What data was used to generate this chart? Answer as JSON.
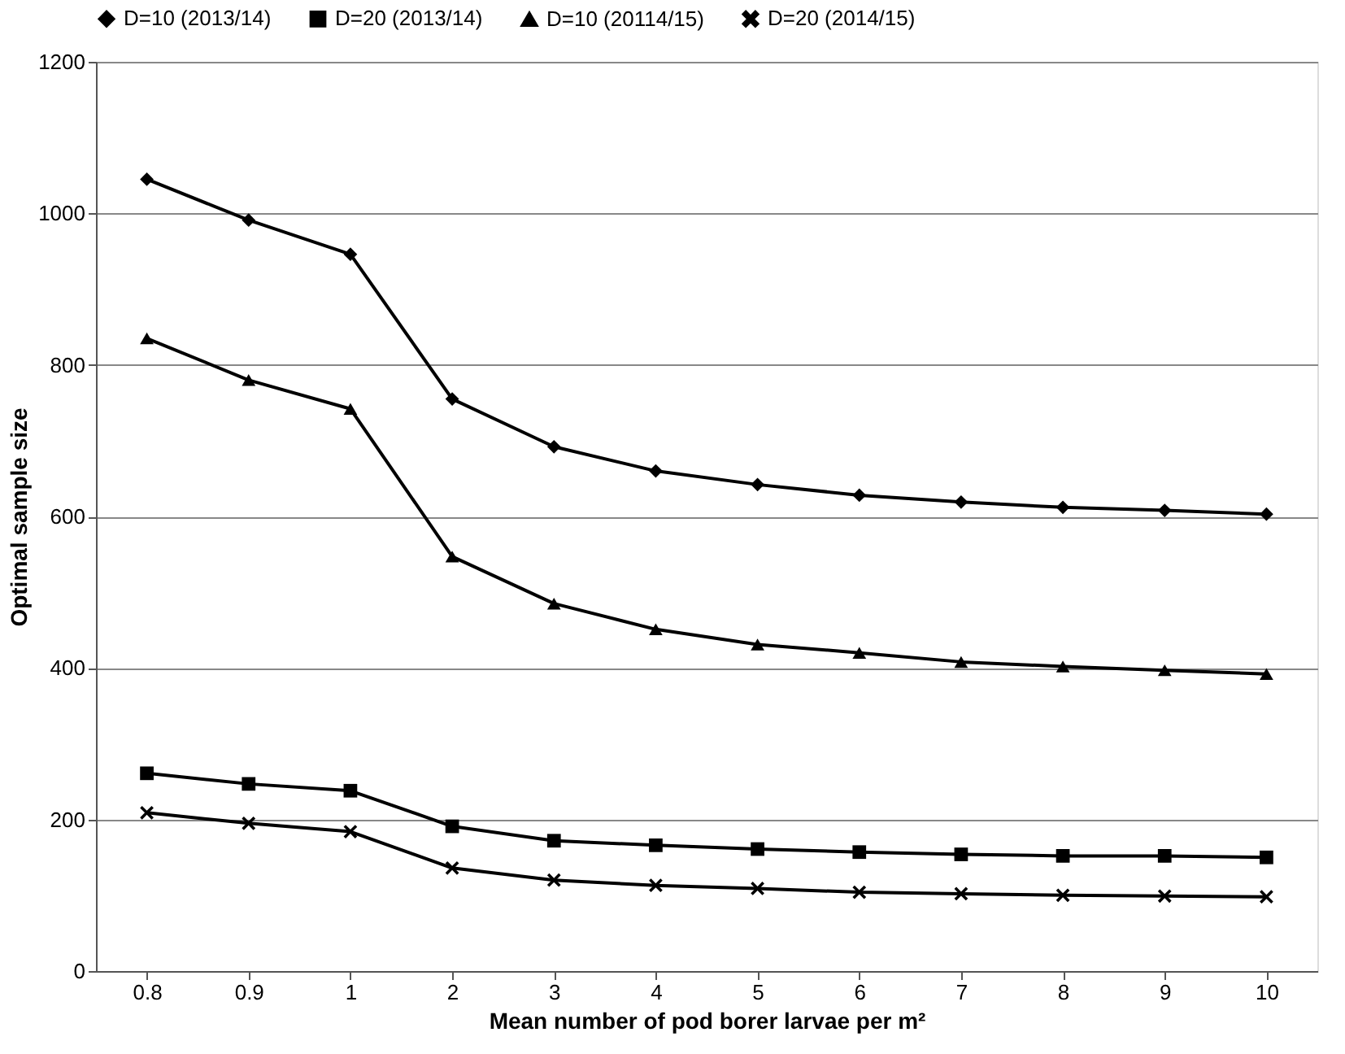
{
  "chart_data": {
    "type": "line",
    "xlabel": "Mean number of pod borer larvae per m²",
    "ylabel": "Optimal sample size",
    "categories": [
      "0.8",
      "0.9",
      "1",
      "2",
      "3",
      "4",
      "5",
      "6",
      "7",
      "8",
      "9",
      "10"
    ],
    "series": [
      {
        "name": "D=10 (2013/14)",
        "color": "#000000",
        "marker": "diamond",
        "values": [
          1045,
          991,
          946,
          755,
          692,
          660,
          642,
          628,
          619,
          612,
          608,
          603
        ]
      },
      {
        "name": "D=20 (2013/14)",
        "color": "#000000",
        "marker": "square",
        "values": [
          261,
          247,
          238,
          191,
          172,
          166,
          161,
          157,
          154,
          152,
          152,
          150
        ]
      },
      {
        "name": "D=10 (20114/15)",
        "color": "#000000",
        "marker": "triangle",
        "values": [
          835,
          780,
          742,
          547,
          485,
          451,
          431,
          420,
          408,
          402,
          397,
          392
        ]
      },
      {
        "name": "D=20 (2014/15)",
        "color": "#000000",
        "marker": "cross",
        "values": [
          209,
          195,
          184,
          136,
          120,
          113,
          109,
          104,
          102,
          100,
          99,
          98
        ]
      }
    ],
    "ylim": [
      0,
      1200
    ],
    "yticks": [
      0,
      200,
      400,
      600,
      800,
      1000,
      1200
    ],
    "grid": "y",
    "legend": "top",
    "line_style": "solid"
  }
}
